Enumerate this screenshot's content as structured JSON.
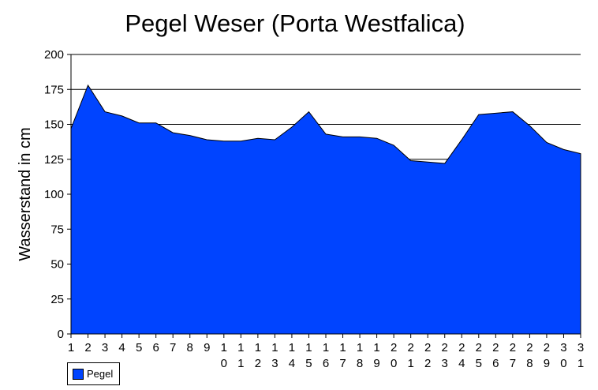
{
  "chart_data": {
    "type": "area",
    "title": "Pegel Weser (Porta Westfalica)",
    "xlabel": "",
    "ylabel": "Wasserstand in cm",
    "categories": [
      "1",
      "2",
      "3",
      "4",
      "5",
      "6",
      "7",
      "8",
      "9",
      "10",
      "11",
      "12",
      "13",
      "14",
      "15",
      "16",
      "17",
      "18",
      "19",
      "20",
      "21",
      "22",
      "23",
      "24",
      "25",
      "26",
      "27",
      "28",
      "29",
      "30",
      "31"
    ],
    "series": [
      {
        "name": "Pegel",
        "color": "#0044ff",
        "values": [
          147,
          178,
          159,
          156,
          151,
          151,
          144,
          142,
          139,
          138,
          138,
          140,
          139,
          148,
          159,
          143,
          141,
          141,
          140,
          135,
          124,
          123,
          122,
          139,
          157,
          158,
          159,
          149,
          137,
          132,
          129
        ]
      }
    ],
    "ylim": [
      0,
      200
    ],
    "yticks": [
      0,
      25,
      50,
      75,
      100,
      125,
      150,
      175,
      200
    ],
    "grid": true,
    "legend": "bottom-left"
  }
}
